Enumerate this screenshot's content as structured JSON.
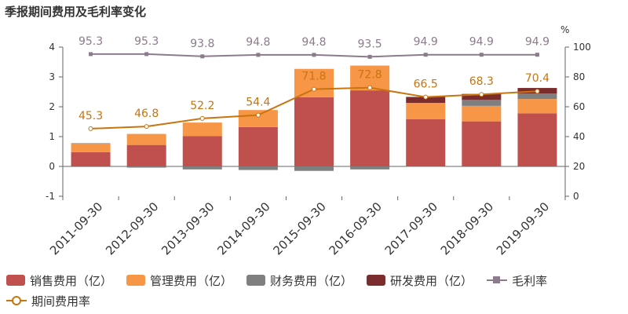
{
  "title": "季报期间费用及毛利率变化",
  "chart_data": {
    "type": "bar",
    "stacked": true,
    "categories": [
      "2011-09-30",
      "2012-09-30",
      "2013-09-30",
      "2014-09-30",
      "2015-09-30",
      "2016-09-30",
      "2017-09-30",
      "2018-09-30",
      "2019-09-30"
    ],
    "series": [
      {
        "name": "销售费用（亿）",
        "color": "#c0504d",
        "values": [
          0.48,
          0.72,
          1.02,
          1.32,
          2.32,
          2.55,
          1.58,
          1.51,
          1.78
        ]
      },
      {
        "name": "管理费用（亿）",
        "color": "#f79646",
        "values": [
          0.29,
          0.37,
          0.45,
          0.57,
          0.95,
          0.83,
          0.55,
          0.52,
          0.48
        ]
      },
      {
        "name": "财务费用（亿）",
        "color": "#7f7f7f",
        "values": [
          0.01,
          -0.04,
          -0.1,
          -0.12,
          -0.15,
          -0.1,
          -0.01,
          0.2,
          0.18
        ]
      },
      {
        "name": "研发费用（亿）",
        "color": "#7b2c2c",
        "values": [
          0,
          0,
          0,
          0,
          0,
          0,
          0.2,
          0.2,
          0.19
        ]
      }
    ],
    "lines": [
      {
        "name": "毛利率",
        "color": "#8c7b8c",
        "marker": "square",
        "axis": "right",
        "values": [
          95.3,
          95.3,
          93.8,
          94.8,
          94.8,
          93.5,
          94.9,
          94.9,
          94.9
        ]
      },
      {
        "name": "期间费用率",
        "color": "#c8740f",
        "marker": "circle",
        "axis": "right",
        "values": [
          45.3,
          46.8,
          52.2,
          54.4,
          71.8,
          72.8,
          66.5,
          68.3,
          70.4
        ]
      }
    ],
    "ylim": [
      -1,
      4
    ],
    "yticks": [
      "-1",
      "0",
      "1",
      "2",
      "3",
      "4"
    ],
    "y2lim": [
      0,
      100
    ],
    "y2ticks": [
      "0",
      "20",
      "40",
      "60",
      "80",
      "100"
    ],
    "y2unit": "%",
    "legend_position": "bottom"
  }
}
